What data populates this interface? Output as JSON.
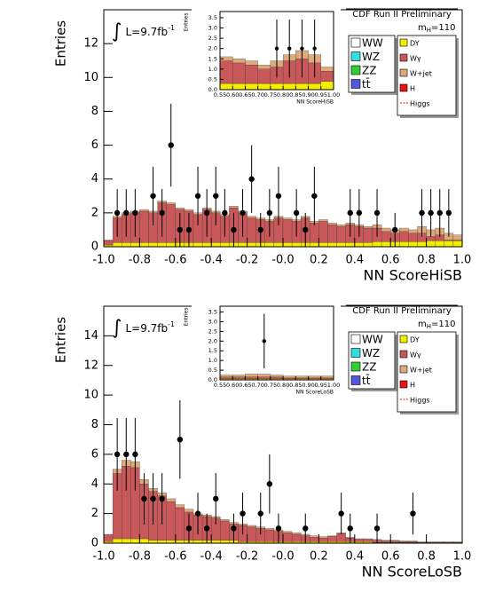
{
  "chart_data": [
    {
      "type": "histogram",
      "x_label": "NN ScoreHiSB",
      "y_label": "Entries",
      "header": "CDF Run II Preliminary",
      "mass_label": [
        "m",
        "H",
        "=110"
      ],
      "lumi_label": [
        "∫",
        "L=9.7fb",
        "-1"
      ],
      "bins": [
        -1,
        -0.95,
        -0.9,
        -0.85,
        -0.8,
        -0.75,
        -0.7,
        -0.65,
        -0.6,
        -0.55,
        -0.5,
        -0.45,
        -0.4,
        -0.35,
        -0.3,
        -0.25,
        -0.2,
        -0.15,
        -0.1,
        -0.05,
        0,
        0.05,
        0.1,
        0.15,
        0.2,
        0.25,
        0.3,
        0.35,
        0.4,
        0.45,
        0.5,
        0.55,
        0.6,
        0.65,
        0.7,
        0.75,
        0.8,
        0.85,
        0.9,
        0.95,
        1
      ],
      "series": [
        {
          "name": "WW",
          "color": "#ffffff"
        },
        {
          "name": "WZ",
          "color": "#33dddd"
        },
        {
          "name": "ZZ",
          "color": "#33cc33"
        },
        {
          "name": "tt̄",
          "color": "#5555dd"
        },
        {
          "name": "DY",
          "color": "#f2ee00",
          "values": [
            0.1,
            0.25,
            0.25,
            0.25,
            0.25,
            0.25,
            0.25,
            0.25,
            0.25,
            0.25,
            0.25,
            0.25,
            0.25,
            0.25,
            0.25,
            0.25,
            0.25,
            0.25,
            0.25,
            0.25,
            0.25,
            0.25,
            0.25,
            0.25,
            0.25,
            0.25,
            0.25,
            0.25,
            0.25,
            0.25,
            0.3,
            0.3,
            0.3,
            0.3,
            0.3,
            0.3,
            0.35,
            0.35,
            0.35,
            0.35
          ]
        },
        {
          "name": "Wγ",
          "color": "#c8585a",
          "values": [
            0.25,
            1.45,
            1.65,
            1.75,
            1.85,
            1.75,
            2.35,
            2.25,
            1.95,
            1.85,
            1.65,
            1.95,
            1.75,
            1.55,
            2.05,
            1.75,
            1.45,
            1.35,
            1.25,
            1.45,
            1.35,
            1.25,
            1.45,
            1.15,
            1.25,
            1.05,
            0.95,
            1.05,
            0.95,
            0.85,
            0.8,
            0.6,
            0.5,
            0.6,
            0.5,
            0.5,
            0.25,
            0.35,
            0.05,
            0.05
          ]
        },
        {
          "name": "W+jet",
          "color": "#deaa7a",
          "values": [
            0.05,
            0.1,
            0.1,
            0.1,
            0.1,
            0.1,
            0.1,
            0.1,
            0.1,
            0.1,
            0.1,
            0.1,
            0.1,
            0.1,
            0.1,
            0.1,
            0.1,
            0.1,
            0.1,
            0.1,
            0.1,
            0.1,
            0.1,
            0.1,
            0.1,
            0.1,
            0.1,
            0.1,
            0.1,
            0.1,
            0.2,
            0.2,
            0.2,
            0.2,
            0.2,
            0.4,
            0.4,
            0.4,
            0.4,
            0.3
          ]
        },
        {
          "name": "H",
          "color": "#ee1111"
        },
        {
          "name": "Higgs",
          "color": "#ee1111"
        }
      ],
      "data": {
        "x": [
          -0.925,
          -0.875,
          -0.825,
          -0.725,
          -0.675,
          -0.625,
          -0.575,
          -0.525,
          -0.475,
          -0.425,
          -0.375,
          -0.325,
          -0.275,
          -0.225,
          -0.175,
          -0.125,
          -0.075,
          -0.025,
          0.075,
          0.125,
          0.175,
          0.375,
          0.425,
          0.525,
          0.625,
          0.775,
          0.825,
          0.875,
          0.925
        ],
        "values": [
          2,
          2,
          2,
          3,
          2,
          6,
          1,
          1,
          3,
          2,
          3,
          2,
          1,
          2,
          4,
          1,
          2,
          3,
          2,
          1,
          3,
          2,
          2,
          2,
          1,
          2,
          2,
          2,
          2
        ],
        "errors": [
          1.41,
          1.41,
          1.41,
          1.73,
          1.41,
          2.45,
          1,
          1,
          1.73,
          1.41,
          1.73,
          1.41,
          1,
          1.41,
          2,
          1,
          1.41,
          1.73,
          1.41,
          1,
          1.73,
          1.41,
          1.41,
          1.41,
          1,
          1.41,
          1.41,
          1.41,
          1.41
        ]
      },
      "xlim": [
        -1,
        1
      ],
      "ylim": [
        0,
        14
      ],
      "xticks": [
        {
          "value": -1,
          "label": "-1.0"
        },
        -0.8,
        -0.6,
        -0.4,
        -0.2,
        {
          "value": 0,
          "label": "-0.0"
        },
        0.2,
        0.4,
        0.6,
        0.8,
        {
          "value": 1,
          "label": "1.0"
        }
      ],
      "yticks": [
        0,
        2,
        4,
        6,
        8,
        10,
        12
      ]
    },
    {
      "type": "histogram",
      "x_label": "NN ScoreHiSB",
      "y_label": "Entries",
      "bins": [
        0.55,
        0.6,
        0.65,
        0.7,
        0.75,
        0.8,
        0.85,
        0.9,
        0.95,
        1
      ],
      "series": [
        {
          "color": "#f2ee00",
          "values": [
            0.3,
            0.3,
            0.3,
            0.3,
            0.3,
            0.3,
            0.3,
            0.3,
            0.4
          ]
        },
        {
          "color": "#c8585a",
          "values": [
            1.1,
            1.0,
            0.9,
            0.7,
            0.8,
            1.1,
            1.2,
            1.0,
            0.5
          ]
        },
        {
          "color": "#deaa7a",
          "values": [
            0.2,
            0.2,
            0.2,
            0.2,
            0.3,
            0.3,
            0.4,
            0.4,
            0.2
          ]
        }
      ],
      "data": {
        "x": [
          0.775,
          0.825,
          0.875,
          0.925
        ],
        "values": [
          2,
          2,
          2,
          2
        ],
        "errors": [
          1.41,
          1.41,
          1.41,
          1.41
        ]
      },
      "xlim": [
        0.55,
        1
      ],
      "ylim": [
        0,
        3.8
      ],
      "xticks": [
        0.55,
        {
          "value": 0.6,
          "label": "0.60"
        },
        0.65,
        {
          "value": 0.7,
          "label": "0.70"
        },
        0.75,
        {
          "value": 0.8,
          "label": "0.80"
        },
        0.85,
        {
          "value": 0.9,
          "label": "0.90"
        },
        0.95,
        {
          "value": 1,
          "label": "1.00"
        }
      ],
      "yticks": [
        {
          "value": 0,
          "label": "0.0"
        },
        0.5,
        {
          "value": 1,
          "label": "1.0"
        },
        1.5,
        {
          "value": 2,
          "label": "2.0"
        },
        2.5,
        {
          "value": 3,
          "label": "3.0"
        },
        3.5
      ]
    },
    {
      "type": "histogram",
      "x_label": "NN ScoreLoSB",
      "y_label": "Entries",
      "header": "CDF Run II Preliminary",
      "mass_label": [
        "m",
        "H",
        "=110"
      ],
      "lumi_label": [
        "∫",
        "L=9.7fb",
        "-1"
      ],
      "bins": [
        -1,
        -0.95,
        -0.9,
        -0.85,
        -0.8,
        -0.75,
        -0.7,
        -0.65,
        -0.6,
        -0.55,
        -0.5,
        -0.45,
        -0.4,
        -0.35,
        -0.3,
        -0.25,
        -0.2,
        -0.15,
        -0.1,
        -0.05,
        0,
        0.05,
        0.1,
        0.15,
        0.2,
        0.25,
        0.3,
        0.35,
        0.4,
        0.45,
        0.5,
        0.55,
        0.6,
        0.65,
        0.7,
        0.75,
        0.8,
        0.85,
        0.9,
        0.95,
        1
      ],
      "series": [
        {
          "name": "WW",
          "color": "#ffffff"
        },
        {
          "name": "WZ",
          "color": "#33dddd"
        },
        {
          "name": "ZZ",
          "color": "#33cc33"
        },
        {
          "name": "tt̄",
          "color": "#5555dd"
        },
        {
          "name": "DY",
          "color": "#f2ee00",
          "values": [
            0.1,
            0.3,
            0.3,
            0.3,
            0.3,
            0.2,
            0.2,
            0.2,
            0.2,
            0.2,
            0.2,
            0.2,
            0.2,
            0.2,
            0.2,
            0.1,
            0.1,
            0.1,
            0.1,
            0.1,
            0.1,
            0.1,
            0.1,
            0.1,
            0.1,
            0.1,
            0.1,
            0.1,
            0.1,
            0.1,
            0.05,
            0.05,
            0.05,
            0.05,
            0.05,
            0.05,
            0.05,
            0.05,
            0.05,
            0.05
          ]
        },
        {
          "name": "Wγ",
          "color": "#c8585a",
          "values": [
            0.45,
            4.4,
            4.9,
            4.8,
            3.7,
            3.3,
            3.0,
            2.6,
            2.2,
            1.9,
            1.7,
            1.6,
            1.5,
            1.3,
            1.1,
            1.1,
            1.0,
            0.9,
            0.8,
            0.7,
            0.6,
            0.5,
            0.4,
            0.3,
            0.25,
            0.35,
            0.55,
            0.25,
            0.15,
            0.15,
            0.15,
            0.1,
            0.1,
            0.05,
            0.05,
            0,
            0,
            0,
            0,
            0
          ]
        },
        {
          "name": "W+jet",
          "color": "#deaa7a",
          "values": [
            0.05,
            0.3,
            0.4,
            0.4,
            0.3,
            0.2,
            0.2,
            0.2,
            0.2,
            0.2,
            0.1,
            0.1,
            0.1,
            0.1,
            0.1,
            0.1,
            0.1,
            0.1,
            0.1,
            0.1,
            0.1,
            0.1,
            0.1,
            0.1,
            0.1,
            0.05,
            0.05,
            0.05,
            0.05,
            0.05,
            0.05,
            0.05,
            0.05,
            0.05,
            0.05,
            0.05,
            0.05,
            0.05,
            0.05,
            0.05
          ]
        },
        {
          "name": "H",
          "color": "#ee1111"
        },
        {
          "name": "Higgs",
          "color": "#ee1111"
        }
      ],
      "data": {
        "x": [
          -0.925,
          -0.875,
          -0.825,
          -0.775,
          -0.725,
          -0.675,
          -0.575,
          -0.525,
          -0.475,
          -0.425,
          -0.375,
          -0.275,
          -0.225,
          -0.125,
          -0.075,
          -0.025,
          0.125,
          0.325,
          0.375,
          0.525,
          0.725
        ],
        "values": [
          6,
          6,
          6,
          3,
          3,
          3,
          7,
          1,
          2,
          1,
          3,
          1,
          2,
          2,
          4,
          1,
          1,
          2,
          1,
          1,
          2
        ],
        "errors": [
          2.45,
          2.45,
          2.45,
          1.73,
          1.73,
          1.73,
          2.65,
          1,
          1.41,
          1,
          1.73,
          1,
          1.41,
          1.41,
          2,
          1,
          1,
          1.41,
          1,
          1,
          1.41
        ]
      },
      "xlim": [
        -1,
        1
      ],
      "ylim": [
        0,
        16
      ],
      "xticks": [
        {
          "value": -1,
          "label": "-1.0"
        },
        -0.8,
        -0.6,
        -0.4,
        -0.2,
        {
          "value": 0,
          "label": "-0.0"
        },
        0.2,
        0.4,
        0.6,
        0.8,
        {
          "value": 1,
          "label": "1.0"
        }
      ],
      "yticks": [
        0,
        2,
        4,
        6,
        8,
        10,
        12,
        14
      ]
    },
    {
      "type": "histogram",
      "x_label": "NN ScoreLoSB",
      "y_label": "Entries",
      "bins": [
        0.55,
        0.6,
        0.65,
        0.7,
        0.75,
        0.8,
        0.85,
        0.9,
        0.95,
        1
      ],
      "series": [
        {
          "color": "#f2ee00",
          "values": [
            0.05,
            0.05,
            0.05,
            0.05,
            0.05,
            0.05,
            0.05,
            0.05,
            0.05
          ]
        },
        {
          "color": "#c8585a",
          "values": [
            0.1,
            0.1,
            0.1,
            0.1,
            0.1,
            0.05,
            0.05,
            0.05,
            0.05
          ]
        },
        {
          "color": "#deaa7a",
          "values": [
            0.1,
            0.1,
            0.15,
            0.15,
            0.1,
            0.1,
            0.1,
            0.1,
            0.1
          ]
        }
      ],
      "data": {
        "x": [
          0.725
        ],
        "values": [
          2
        ],
        "errors": [
          1.41
        ]
      },
      "xlim": [
        0.55,
        1
      ],
      "ylim": [
        0,
        3.8
      ],
      "xticks": [
        0.55,
        {
          "value": 0.6,
          "label": "0.60"
        },
        0.65,
        {
          "value": 0.7,
          "label": "0.70"
        },
        0.75,
        {
          "value": 0.8,
          "label": "0.80"
        },
        0.85,
        {
          "value": 0.9,
          "label": "0.90"
        },
        0.95,
        {
          "value": 1,
          "label": "1.00"
        }
      ],
      "yticks": [
        {
          "value": 0,
          "label": "0.0"
        },
        0.5,
        {
          "value": 1,
          "label": "1.0"
        },
        1.5,
        {
          "value": 2,
          "label": "2.0"
        },
        2.5,
        {
          "value": 3,
          "label": "3.0"
        },
        3.5
      ]
    }
  ]
}
